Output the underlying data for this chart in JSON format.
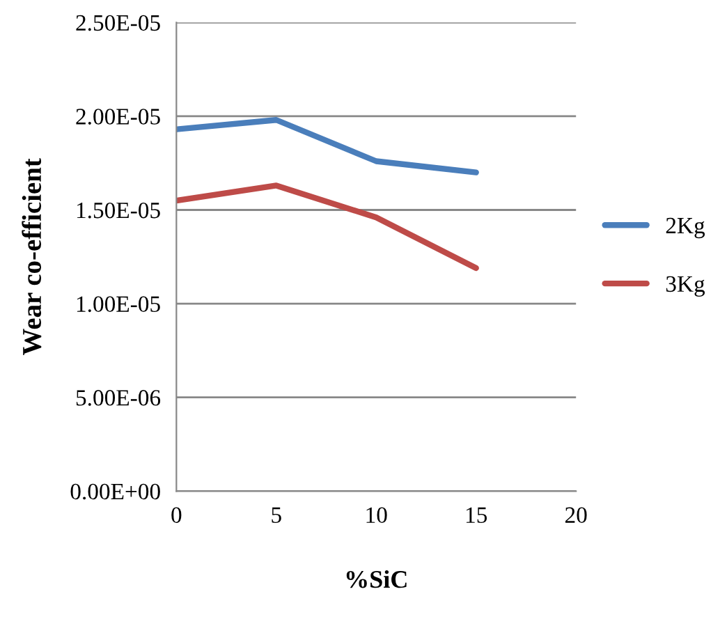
{
  "chart_data": {
    "type": "line",
    "xlabel": "%SiC",
    "ylabel": "Wear co-efficient",
    "x": [
      0,
      5,
      10,
      15
    ],
    "series": [
      {
        "name": "2Kg",
        "color": "#4a7ebb",
        "values": [
          1.93e-05,
          1.98e-05,
          1.76e-05,
          1.7e-05
        ]
      },
      {
        "name": "3Kg",
        "color": "#be4b48",
        "values": [
          1.55e-05,
          1.63e-05,
          1.46e-05,
          1.19e-05
        ]
      }
    ],
    "xlim": [
      0,
      20
    ],
    "xticks": [
      0,
      5,
      10,
      15,
      20
    ],
    "ylim": [
      0,
      2.5e-05
    ],
    "yticks": [
      {
        "value": 0,
        "label": "0.00E+00"
      },
      {
        "value": 5e-06,
        "label": "5.00E-06"
      },
      {
        "value": 1e-05,
        "label": "1.00E-05"
      },
      {
        "value": 1.5e-05,
        "label": "1.50E-05"
      },
      {
        "value": 2e-05,
        "label": "2.00E-05"
      },
      {
        "value": 2.5e-05,
        "label": "2.50E-05"
      }
    ],
    "grid": "y",
    "legend": "right",
    "marker": "none",
    "line_style": "solid"
  }
}
